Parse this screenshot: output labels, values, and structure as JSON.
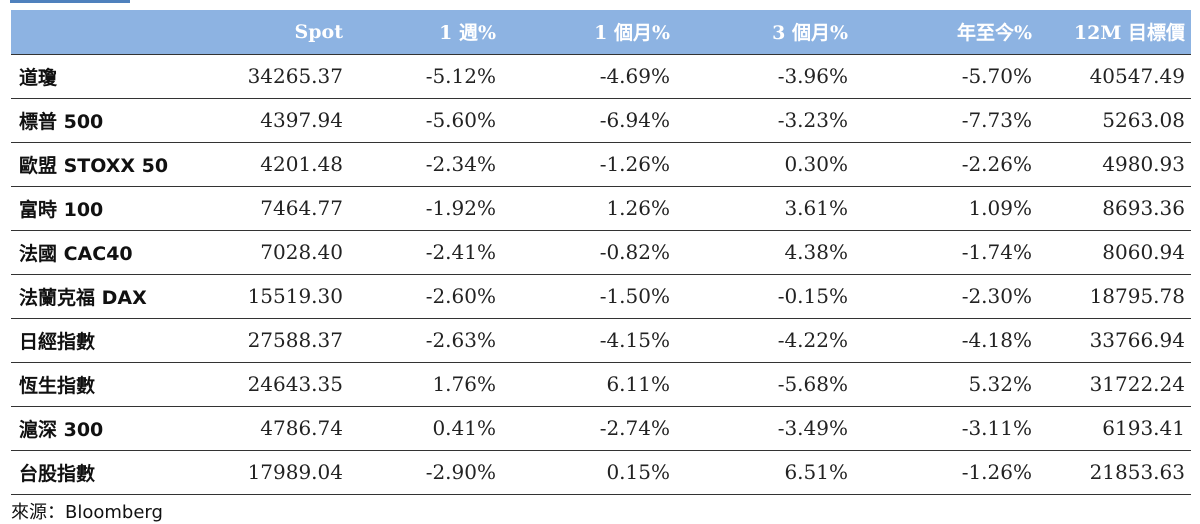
{
  "table": {
    "headers": [
      "",
      "Spot",
      "1 週%",
      "1 個月%",
      "3 個月%",
      "年至今%",
      "12M 目標價"
    ],
    "rows": [
      {
        "name": "道瓊",
        "spot": "34265.37",
        "w1": "-5.12%",
        "m1": "-4.69%",
        "m3": "-3.96%",
        "ytd": "-5.70%",
        "target": "40547.49"
      },
      {
        "name": "標普 500",
        "spot": "4397.94",
        "w1": "-5.60%",
        "m1": "-6.94%",
        "m3": "-3.23%",
        "ytd": "-7.73%",
        "target": "5263.08"
      },
      {
        "name": "歐盟 STOXX 50",
        "spot": "4201.48",
        "w1": "-2.34%",
        "m1": "-1.26%",
        "m3": "0.30%",
        "ytd": "-2.26%",
        "target": "4980.93"
      },
      {
        "name": "富時 100",
        "spot": "7464.77",
        "w1": "-1.92%",
        "m1": "1.26%",
        "m3": "3.61%",
        "ytd": "1.09%",
        "target": "8693.36"
      },
      {
        "name": "法國 CAC40",
        "spot": "7028.40",
        "w1": "-2.41%",
        "m1": "-0.82%",
        "m3": "4.38%",
        "ytd": "-1.74%",
        "target": "8060.94"
      },
      {
        "name": "法蘭克福 DAX",
        "spot": "15519.30",
        "w1": "-2.60%",
        "m1": "-1.50%",
        "m3": "-0.15%",
        "ytd": "-2.30%",
        "target": "18795.78"
      },
      {
        "name": "日經指數",
        "spot": "27588.37",
        "w1": "-2.63%",
        "m1": "-4.15%",
        "m3": "-4.22%",
        "ytd": "-4.18%",
        "target": "33766.94"
      },
      {
        "name": "恆生指數",
        "spot": "24643.35",
        "w1": "1.76%",
        "m1": "6.11%",
        "m3": "-5.68%",
        "ytd": "5.32%",
        "target": "31722.24"
      },
      {
        "name": "滬深 300",
        "spot": "4786.74",
        "w1": "0.41%",
        "m1": "-2.74%",
        "m3": "-3.49%",
        "ytd": "-3.11%",
        "target": "6193.41"
      },
      {
        "name": "台股指數",
        "spot": "17989.04",
        "w1": "-2.90%",
        "m1": "0.15%",
        "m3": "6.51%",
        "ytd": "-1.26%",
        "target": "21853.63"
      }
    ]
  },
  "source": "來源：Bloomberg",
  "colors": {
    "header_bg": "#8db3e2",
    "header_text": "#ffffff",
    "accent_rule": "#4f81bd"
  }
}
